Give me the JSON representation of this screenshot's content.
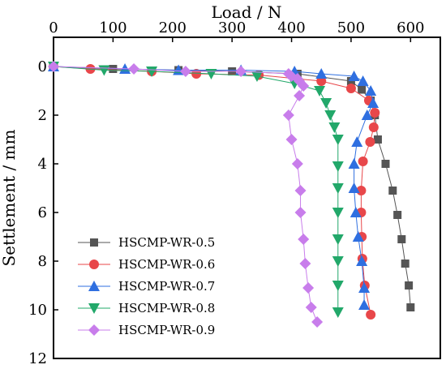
{
  "chart_data": {
    "type": "scatter",
    "title": "",
    "xlabel": "Load / N",
    "ylabel": "Settlement / mm",
    "x_axis_position": "top",
    "y_axis_inverted": true,
    "xlim": [
      0,
      650
    ],
    "ylim": [
      -1.2,
      12
    ],
    "xticks": [
      0,
      100,
      200,
      300,
      400,
      500,
      600
    ],
    "yticks": [
      0,
      2,
      4,
      6,
      8,
      10,
      12
    ],
    "grid": false,
    "legend_position": "bottom-left",
    "series": [
      {
        "name": "HSCMP-WR-0.5",
        "color": "#555555",
        "marker": "square",
        "points": [
          [
            0,
            0
          ],
          [
            100,
            0.1
          ],
          [
            210,
            0.15
          ],
          [
            300,
            0.2
          ],
          [
            410,
            0.3
          ],
          [
            500,
            0.6
          ],
          [
            518,
            0.95
          ],
          [
            533,
            1.4
          ],
          [
            540,
            2.0
          ],
          [
            545,
            3.0
          ],
          [
            558,
            4.0
          ],
          [
            570,
            5.1
          ],
          [
            578,
            6.1
          ],
          [
            585,
            7.1
          ],
          [
            591,
            8.1
          ],
          [
            597,
            9.0
          ],
          [
            600,
            9.9
          ]
        ]
      },
      {
        "name": "HSCMP-WR-0.6",
        "color": "#E8474A",
        "marker": "circle",
        "points": [
          [
            0,
            0
          ],
          [
            62,
            0.1
          ],
          [
            165,
            0.2
          ],
          [
            240,
            0.3
          ],
          [
            345,
            0.35
          ],
          [
            450,
            0.6
          ],
          [
            500,
            0.9
          ],
          [
            530,
            1.4
          ],
          [
            540,
            1.9
          ],
          [
            538,
            2.5
          ],
          [
            532,
            3.1
          ],
          [
            520,
            3.9
          ],
          [
            517,
            5.1
          ],
          [
            517,
            6.0
          ],
          [
            518,
            7.0
          ],
          [
            519,
            7.9
          ],
          [
            523,
            9.0
          ],
          [
            533,
            10.2
          ]
        ]
      },
      {
        "name": "HSCMP-WR-0.7",
        "color": "#2F6FE0",
        "marker": "triangle-up",
        "points": [
          [
            0,
            0
          ],
          [
            120,
            0.1
          ],
          [
            210,
            0.15
          ],
          [
            315,
            0.15
          ],
          [
            405,
            0.2
          ],
          [
            450,
            0.3
          ],
          [
            505,
            0.4
          ],
          [
            520,
            0.6
          ],
          [
            533,
            1.0
          ],
          [
            537,
            1.5
          ],
          [
            527,
            2.0
          ],
          [
            510,
            3.1
          ],
          [
            505,
            4.0
          ],
          [
            505,
            5.0
          ],
          [
            508,
            6.0
          ],
          [
            512,
            7.0
          ],
          [
            518,
            8.0
          ],
          [
            522,
            9.1
          ],
          [
            522,
            9.8
          ]
        ]
      },
      {
        "name": "HSCMP-WR-0.8",
        "color": "#22A86A",
        "marker": "triangle-down",
        "points": [
          [
            0,
            0
          ],
          [
            85,
            0.15
          ],
          [
            165,
            0.2
          ],
          [
            265,
            0.3
          ],
          [
            342,
            0.4
          ],
          [
            405,
            0.7
          ],
          [
            447,
            1.0
          ],
          [
            458,
            1.5
          ],
          [
            465,
            2.0
          ],
          [
            472,
            2.5
          ],
          [
            478,
            3.0
          ],
          [
            478,
            4.1
          ],
          [
            478,
            5.0
          ],
          [
            478,
            6.0
          ],
          [
            478,
            7.1
          ],
          [
            478,
            8.0
          ],
          [
            478,
            9.0
          ],
          [
            478,
            10.1
          ]
        ]
      },
      {
        "name": "HSCMP-WR-0.9",
        "color": "#C87DEB",
        "marker": "diamond",
        "points": [
          [
            0,
            0
          ],
          [
            135,
            0.1
          ],
          [
            222,
            0.2
          ],
          [
            315,
            0.2
          ],
          [
            395,
            0.3
          ],
          [
            400,
            0.4
          ],
          [
            410,
            0.5
          ],
          [
            413,
            0.6
          ],
          [
            420,
            0.8
          ],
          [
            413,
            1.2
          ],
          [
            395,
            2.0
          ],
          [
            400,
            3.0
          ],
          [
            410,
            4.0
          ],
          [
            415,
            5.1
          ],
          [
            415,
            6.0
          ],
          [
            420,
            7.1
          ],
          [
            423,
            8.1
          ],
          [
            428,
            9.1
          ],
          [
            433,
            9.9
          ],
          [
            443,
            10.5
          ]
        ]
      }
    ]
  }
}
